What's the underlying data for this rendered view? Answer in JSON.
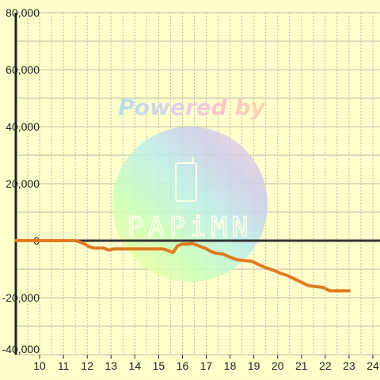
{
  "chart_data": {
    "type": "line",
    "title": "",
    "xlabel": "",
    "ylabel": "",
    "x_ticks": [
      "10",
      "11",
      "12",
      "13",
      "14",
      "15",
      "16",
      "17",
      "18",
      "19",
      "20",
      "21",
      "22",
      "23",
      "24"
    ],
    "y_ticks": [
      "80,000",
      "60,000",
      "40,000",
      "20,000",
      "0",
      "-20,000",
      "-40,000"
    ],
    "xlim": [
      9,
      24.3
    ],
    "ylim": [
      -40000,
      80000
    ],
    "grid": true,
    "legend": "none",
    "series": [
      {
        "color": "#e07b20",
        "x": [
          9,
          9.5,
          10,
          10.5,
          11,
          11.5,
          11.7,
          11.9,
          12.1,
          12.3,
          12.5,
          12.7,
          12.9,
          13.1,
          13.4,
          13.7,
          14.0,
          14.3,
          14.6,
          15.0,
          15.2,
          15.4,
          15.6,
          15.8,
          16.0,
          16.2,
          16.4,
          16.6,
          16.8,
          17.0,
          17.2,
          17.4,
          17.7,
          18.0,
          18.3,
          18.6,
          18.9,
          19.2,
          19.5,
          19.8,
          20.1,
          20.4,
          20.7,
          21.0,
          21.3,
          21.6,
          21.9,
          22.2,
          22.5,
          22.8,
          23.0
        ],
        "y": [
          0,
          0,
          0,
          0,
          0,
          0,
          -500,
          -1200,
          -2200,
          -2600,
          -2600,
          -2600,
          -3300,
          -2900,
          -2900,
          -2900,
          -2900,
          -2900,
          -2900,
          -2900,
          -2900,
          -3500,
          -4200,
          -1800,
          -1200,
          -1200,
          -1000,
          -1500,
          -2200,
          -2800,
          -3800,
          -4400,
          -4700,
          -5800,
          -6700,
          -7000,
          -7200,
          -8400,
          -9500,
          -10300,
          -11400,
          -12200,
          -13400,
          -14600,
          -15800,
          -16100,
          -16400,
          -17600,
          -17600,
          -17600,
          -17600
        ]
      }
    ],
    "colors": {
      "background": "#ffffcc",
      "grid": "#bbbbaa",
      "zero_line": "#333333",
      "axis": "#222222",
      "line": "#e07b20"
    }
  },
  "watermark": {
    "powered_text": "Powered by",
    "brand_text": "PAPiMN"
  }
}
